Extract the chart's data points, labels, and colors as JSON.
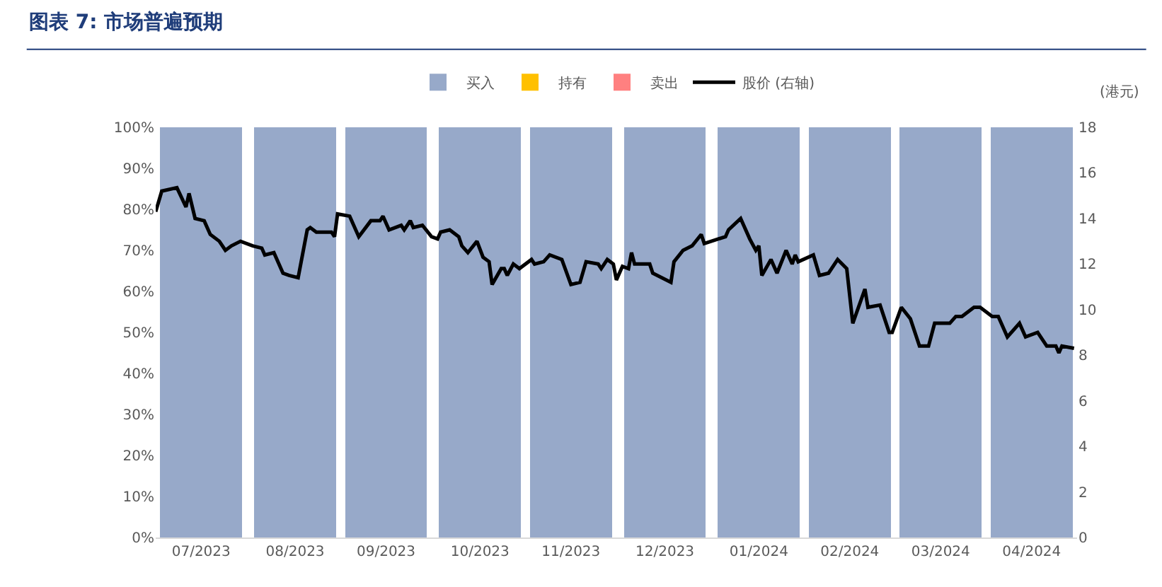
{
  "chart_data": {
    "type": "bar",
    "title": "图表 7: 市场普遍预期",
    "x": [
      "2023-07-16",
      "2023-08-16",
      "2023-09-15",
      "2023-10-16",
      "2023-11-15",
      "2023-12-16",
      "2024-01-16",
      "2024-02-15",
      "2024-03-16",
      "2024-04-15"
    ],
    "xlim": [
      "2023-07-01",
      "2024-04-30"
    ],
    "xticks": [
      {
        "value": "2023-07-16",
        "label": "07/2023"
      },
      {
        "value": "2023-08-16",
        "label": "08/2023"
      },
      {
        "value": "2023-09-15",
        "label": "09/2023"
      },
      {
        "value": "2023-10-16",
        "label": "10/2023"
      },
      {
        "value": "2023-11-15",
        "label": "11/2023"
      },
      {
        "value": "2023-12-16",
        "label": "12/2023"
      },
      {
        "value": "2024-01-16",
        "label": "01/2024"
      },
      {
        "value": "2024-02-15",
        "label": "02/2024"
      },
      {
        "value": "2024-03-16",
        "label": "03/2024"
      },
      {
        "value": "2024-04-15",
        "label": "04/2024"
      }
    ],
    "stacked": true,
    "series": [
      {
        "name": "买入",
        "color": "#97a9c9",
        "values": [
          100,
          100,
          100,
          100,
          100,
          100,
          100,
          100,
          100,
          100
        ]
      },
      {
        "name": "持有",
        "color": "#ffc000",
        "values": [
          0,
          0,
          0,
          0,
          0,
          0,
          0,
          0,
          0,
          0
        ]
      },
      {
        "name": "卖出",
        "color": "#ff8080",
        "values": [
          0,
          0,
          0,
          0,
          0,
          0,
          0,
          0,
          0,
          0
        ]
      },
      {
        "name": "股价 (右轴)",
        "type": "line",
        "axis": "y2",
        "color": "#000000",
        "x": [
          "2023-07-01",
          "2023-07-03",
          "2023-07-08",
          "2023-07-11",
          "2023-07-12",
          "2023-07-14",
          "2023-07-17",
          "2023-07-19",
          "2023-07-22",
          "2023-07-24",
          "2023-07-26",
          "2023-07-29",
          "2023-08-02",
          "2023-08-05",
          "2023-08-06",
          "2023-08-09",
          "2023-08-12",
          "2023-08-14",
          "2023-08-17",
          "2023-08-20",
          "2023-08-21",
          "2023-08-23",
          "2023-08-28",
          "2023-08-29",
          "2023-08-30",
          "2023-09-03",
          "2023-09-06",
          "2023-09-10",
          "2023-09-13",
          "2023-09-14",
          "2023-09-16",
          "2023-09-20",
          "2023-09-21",
          "2023-09-23",
          "2023-09-24",
          "2023-09-27",
          "2023-09-30",
          "2023-10-02",
          "2023-10-03",
          "2023-10-06",
          "2023-10-09",
          "2023-10-10",
          "2023-10-12",
          "2023-10-15",
          "2023-10-17",
          "2023-10-19",
          "2023-10-20",
          "2023-10-23",
          "2023-10-24",
          "2023-10-25",
          "2023-10-27",
          "2023-10-29",
          "2023-11-02",
          "2023-11-03",
          "2023-11-06",
          "2023-11-08",
          "2023-11-12",
          "2023-11-15",
          "2023-11-18",
          "2023-11-20",
          "2023-11-24",
          "2023-11-25",
          "2023-11-27",
          "2023-11-29",
          "2023-11-30",
          "2023-12-02",
          "2023-12-04",
          "2023-12-05",
          "2023-12-06",
          "2023-12-11",
          "2023-12-12",
          "2023-12-18",
          "2023-12-19",
          "2023-12-22",
          "2023-12-25",
          "2023-12-28",
          "2023-12-29",
          "2024-01-05",
          "2024-01-06",
          "2024-01-10",
          "2024-01-13",
          "2024-01-15",
          "2024-01-16",
          "2024-01-17",
          "2024-01-20",
          "2024-01-22",
          "2024-01-25",
          "2024-01-27",
          "2024-01-28",
          "2024-01-29",
          "2024-02-03",
          "2024-02-05",
          "2024-02-08",
          "2024-02-11",
          "2024-02-14",
          "2024-02-16",
          "2024-02-20",
          "2024-02-21",
          "2024-02-25",
          "2024-02-28",
          "2024-02-29",
          "2024-03-03",
          "2024-03-06",
          "2024-03-09",
          "2024-03-12",
          "2024-03-14",
          "2024-03-19",
          "2024-03-21",
          "2024-03-23",
          "2024-03-27",
          "2024-03-29",
          "2024-04-02",
          "2024-04-04",
          "2024-04-07",
          "2024-04-11",
          "2024-04-13",
          "2024-04-17",
          "2024-04-20",
          "2024-04-23",
          "2024-04-24",
          "2024-04-25",
          "2024-04-29"
        ],
        "values": [
          14.3,
          15.2,
          15.35,
          14.5,
          15.1,
          14.0,
          13.9,
          13.3,
          13.0,
          12.6,
          12.8,
          13.0,
          12.8,
          12.7,
          12.4,
          12.5,
          11.6,
          11.5,
          11.4,
          13.5,
          13.6,
          13.4,
          13.4,
          13.2,
          14.2,
          14.1,
          13.2,
          13.9,
          13.9,
          14.1,
          13.5,
          13.7,
          13.5,
          13.9,
          13.6,
          13.7,
          13.2,
          13.1,
          13.4,
          13.5,
          13.2,
          12.8,
          12.5,
          13.0,
          12.3,
          12.1,
          11.1,
          11.8,
          11.8,
          11.5,
          12.0,
          11.8,
          12.2,
          12.0,
          12.1,
          12.4,
          12.2,
          11.1,
          11.2,
          12.1,
          12.0,
          11.8,
          12.2,
          12.0,
          11.3,
          11.9,
          11.8,
          12.5,
          12.0,
          12.0,
          11.6,
          11.2,
          12.1,
          12.6,
          12.8,
          13.3,
          12.9,
          13.2,
          13.5,
          14.0,
          13.1,
          12.6,
          12.8,
          11.5,
          12.2,
          11.6,
          12.6,
          12.0,
          12.4,
          12.1,
          12.4,
          11.5,
          11.6,
          12.2,
          11.8,
          9.4,
          10.9,
          10.1,
          10.2,
          9.0,
          9.0,
          10.1,
          9.6,
          8.4,
          8.4,
          9.4,
          9.4,
          9.7,
          9.7,
          10.1,
          10.1,
          9.7,
          9.7,
          8.8,
          9.4,
          8.8,
          9.0,
          8.4,
          8.4,
          8.1,
          8.4,
          8.3
        ]
      }
    ],
    "ylim": [
      0,
      100
    ],
    "yticks": [
      {
        "value": 0,
        "label": "0%"
      },
      {
        "value": 10,
        "label": "10%"
      },
      {
        "value": 20,
        "label": "20%"
      },
      {
        "value": 30,
        "label": "30%"
      },
      {
        "value": 40,
        "label": "40%"
      },
      {
        "value": 50,
        "label": "50%"
      },
      {
        "value": 60,
        "label": "60%"
      },
      {
        "value": 70,
        "label": "70%"
      },
      {
        "value": 80,
        "label": "80%"
      },
      {
        "value": 90,
        "label": "90%"
      },
      {
        "value": 100,
        "label": "100%"
      }
    ],
    "y2lim": [
      0,
      18
    ],
    "y2ticks": [
      0,
      2,
      4,
      6,
      8,
      10,
      12,
      14,
      16,
      18
    ],
    "y2label": "(港元)",
    "legend": "top"
  }
}
